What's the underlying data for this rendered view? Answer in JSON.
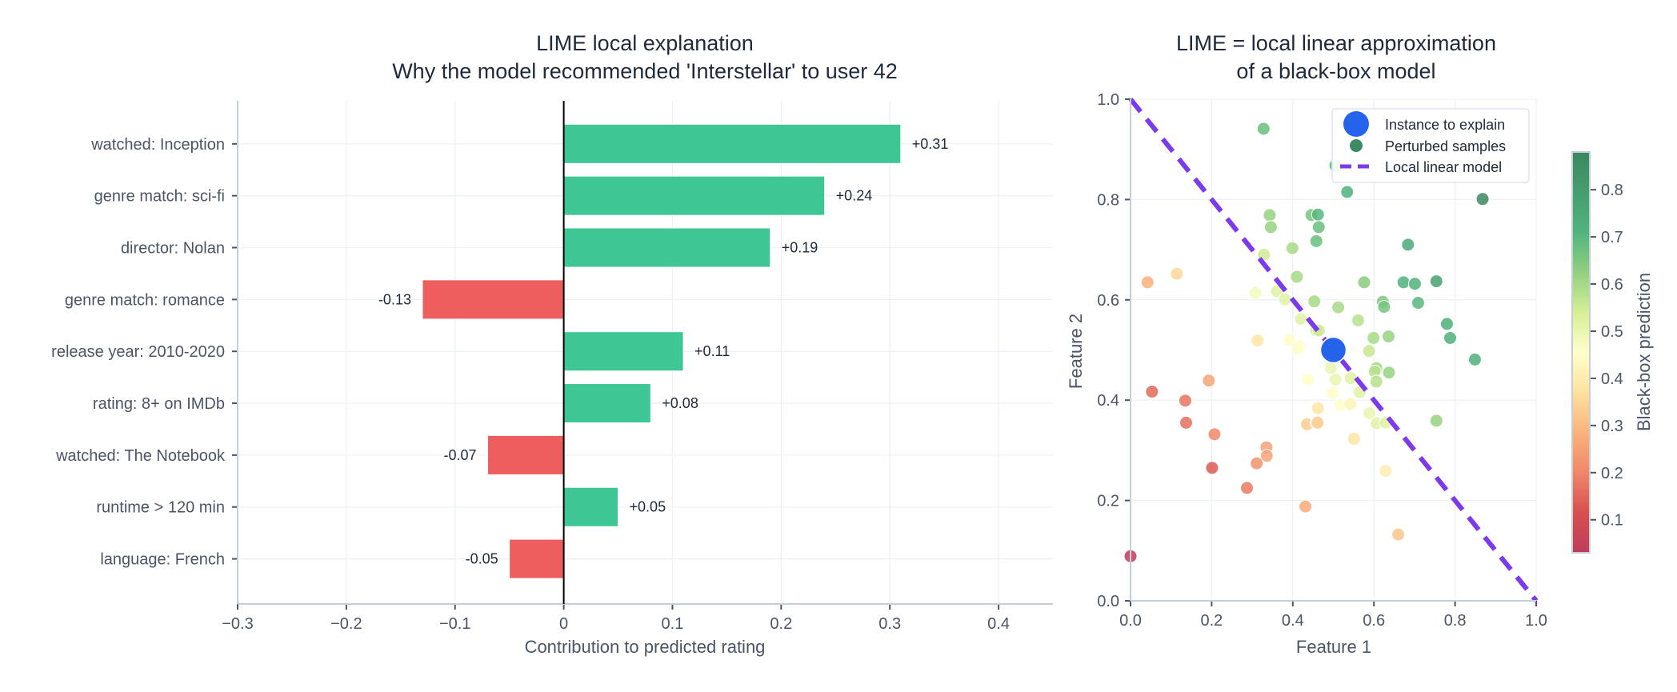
{
  "chart_data": [
    {
      "type": "bar",
      "orientation": "horizontal",
      "title": "LIME local explanation\nWhy the model recommended 'Interstellar' to user 42",
      "title_lines": [
        "LIME local explanation",
        "Why the model recommended 'Interstellar' to user 42"
      ],
      "xlabel": "Contribution to predicted rating",
      "ylabel": "",
      "xlim": [
        -0.3,
        0.45
      ],
      "xticks": [
        -0.3,
        -0.2,
        -0.1,
        0,
        0.1,
        0.2,
        0.3,
        0.4
      ],
      "xtick_labels": [
        "−0.3",
        "−0.2",
        "−0.1",
        "0",
        "0.1",
        "0.2",
        "0.3",
        "0.4"
      ],
      "grid": true,
      "categories": [
        "watched: Inception",
        "genre match: sci-fi",
        "director: Nolan",
        "genre match: romance",
        "release year: 2010-2020",
        "rating: 8+ on IMDb",
        "watched: The Notebook",
        "runtime > 120 min",
        "language: French"
      ],
      "values": [
        0.31,
        0.24,
        0.19,
        -0.13,
        0.11,
        0.08,
        -0.07,
        0.05,
        -0.05
      ],
      "data_labels": [
        "+0.31",
        "+0.24",
        "+0.19",
        "-0.13",
        "+0.11",
        "+0.08",
        "-0.07",
        "+0.05",
        "-0.05"
      ],
      "colors": {
        "positive": "#34c38f",
        "negative": "#ee5555"
      }
    },
    {
      "type": "scatter",
      "title_lines": [
        "LIME = local linear approximation",
        "of a black-box model"
      ],
      "xlabel": "Feature 1",
      "ylabel": "Feature 2",
      "xlim": [
        0,
        1
      ],
      "ylim": [
        0,
        1
      ],
      "xticks": [
        "0.0",
        "0.2",
        "0.4",
        "0.6",
        "0.8",
        "1.0"
      ],
      "yticks": [
        "0.0",
        "0.2",
        "0.4",
        "0.6",
        "0.8",
        "1.0"
      ],
      "grid": true,
      "legend": {
        "placement": "top-right",
        "entries": [
          "Instance to explain",
          "Perturbed samples",
          "Local linear model"
        ]
      },
      "colorbar": {
        "title": "Black-box prediction",
        "range": [
          0.03,
          0.88
        ],
        "ticks": [
          "0.1",
          "0.2",
          "0.3",
          "0.4",
          "0.5",
          "0.6",
          "0.7",
          "0.8"
        ],
        "colorscale": "RdYlGn"
      },
      "instance": {
        "x": 0.5,
        "y": 0.5,
        "color": "#2563eb"
      },
      "linear_model": {
        "points": [
          [
            0,
            1
          ],
          [
            1,
            0
          ]
        ],
        "color": "#7c3aed",
        "style": "dashed"
      },
      "series": [
        {
          "name": "Perturbed samples",
          "points": [
            [
              0.328,
              0.941,
              0.68
            ],
            [
              0.505,
              0.868,
              0.7
            ],
            [
              0.534,
              0.815,
              0.72
            ],
            [
              0.868,
              0.801,
              0.88
            ],
            [
              0.343,
              0.769,
              0.62
            ],
            [
              0.346,
              0.745,
              0.62
            ],
            [
              0.446,
              0.769,
              0.66
            ],
            [
              0.462,
              0.77,
              0.7
            ],
            [
              0.464,
              0.745,
              0.68
            ],
            [
              0.458,
              0.717,
              0.68
            ],
            [
              0.399,
              0.703,
              0.6
            ],
            [
              0.329,
              0.69,
              0.55
            ],
            [
              0.042,
              0.635,
              0.28
            ],
            [
              0.114,
              0.652,
              0.35
            ],
            [
              0.41,
              0.646,
              0.6
            ],
            [
              0.308,
              0.614,
              0.48
            ],
            [
              0.361,
              0.617,
              0.52
            ],
            [
              0.381,
              0.601,
              0.52
            ],
            [
              0.453,
              0.597,
              0.6
            ],
            [
              0.512,
              0.585,
              0.6
            ],
            [
              0.42,
              0.562,
              0.52
            ],
            [
              0.458,
              0.539,
              0.55
            ],
            [
              0.464,
              0.539,
              0.55
            ],
            [
              0.313,
              0.519,
              0.38
            ],
            [
              0.392,
              0.52,
              0.45
            ],
            [
              0.418,
              0.508,
              0.45
            ],
            [
              0.412,
              0.503,
              0.46
            ],
            [
              0.684,
              0.71,
              0.75
            ],
            [
              0.576,
              0.635,
              0.64
            ],
            [
              0.673,
              0.635,
              0.72
            ],
            [
              0.701,
              0.632,
              0.72
            ],
            [
              0.754,
              0.637,
              0.78
            ],
            [
              0.622,
              0.596,
              0.65
            ],
            [
              0.625,
              0.586,
              0.66
            ],
            [
              0.709,
              0.594,
              0.7
            ],
            [
              0.561,
              0.559,
              0.58
            ],
            [
              0.78,
              0.552,
              0.73
            ],
            [
              0.788,
              0.524,
              0.73
            ],
            [
              0.599,
              0.524,
              0.6
            ],
            [
              0.636,
              0.527,
              0.62
            ],
            [
              0.588,
              0.498,
              0.56
            ],
            [
              0.849,
              0.481,
              0.72
            ],
            [
              0.053,
              0.417,
              0.15
            ],
            [
              0.193,
              0.439,
              0.26
            ],
            [
              0.135,
              0.399,
              0.17
            ],
            [
              0.137,
              0.355,
              0.16
            ],
            [
              0.207,
              0.332,
              0.2
            ],
            [
              0.201,
              0.265,
              0.13
            ],
            [
              0.335,
              0.306,
              0.25
            ],
            [
              0.336,
              0.289,
              0.26
            ],
            [
              0.311,
              0.274,
              0.22
            ],
            [
              0.287,
              0.225,
              0.18
            ],
            [
              0.431,
              0.188,
              0.27
            ],
            [
              0.0,
              0.089,
              0.03
            ],
            [
              0.438,
              0.441,
              0.45
            ],
            [
              0.505,
              0.441,
              0.5
            ],
            [
              0.494,
              0.464,
              0.5
            ],
            [
              0.498,
              0.414,
              0.45
            ],
            [
              0.517,
              0.39,
              0.45
            ],
            [
              0.462,
              0.384,
              0.38
            ],
            [
              0.435,
              0.352,
              0.33
            ],
            [
              0.459,
              0.355,
              0.35
            ],
            [
              0.461,
              0.355,
              0.34
            ],
            [
              0.606,
              0.464,
              0.6
            ],
            [
              0.602,
              0.457,
              0.58
            ],
            [
              0.637,
              0.455,
              0.62
            ],
            [
              0.606,
              0.437,
              0.58
            ],
            [
              0.543,
              0.444,
              0.52
            ],
            [
              0.565,
              0.416,
              0.52
            ],
            [
              0.542,
              0.392,
              0.42
            ],
            [
              0.589,
              0.374,
              0.5
            ],
            [
              0.607,
              0.354,
              0.52
            ],
            [
              0.629,
              0.355,
              0.52
            ],
            [
              0.754,
              0.359,
              0.62
            ],
            [
              0.551,
              0.323,
              0.38
            ],
            [
              0.629,
              0.259,
              0.4
            ],
            [
              0.66,
              0.132,
              0.32
            ]
          ]
        }
      ]
    }
  ]
}
